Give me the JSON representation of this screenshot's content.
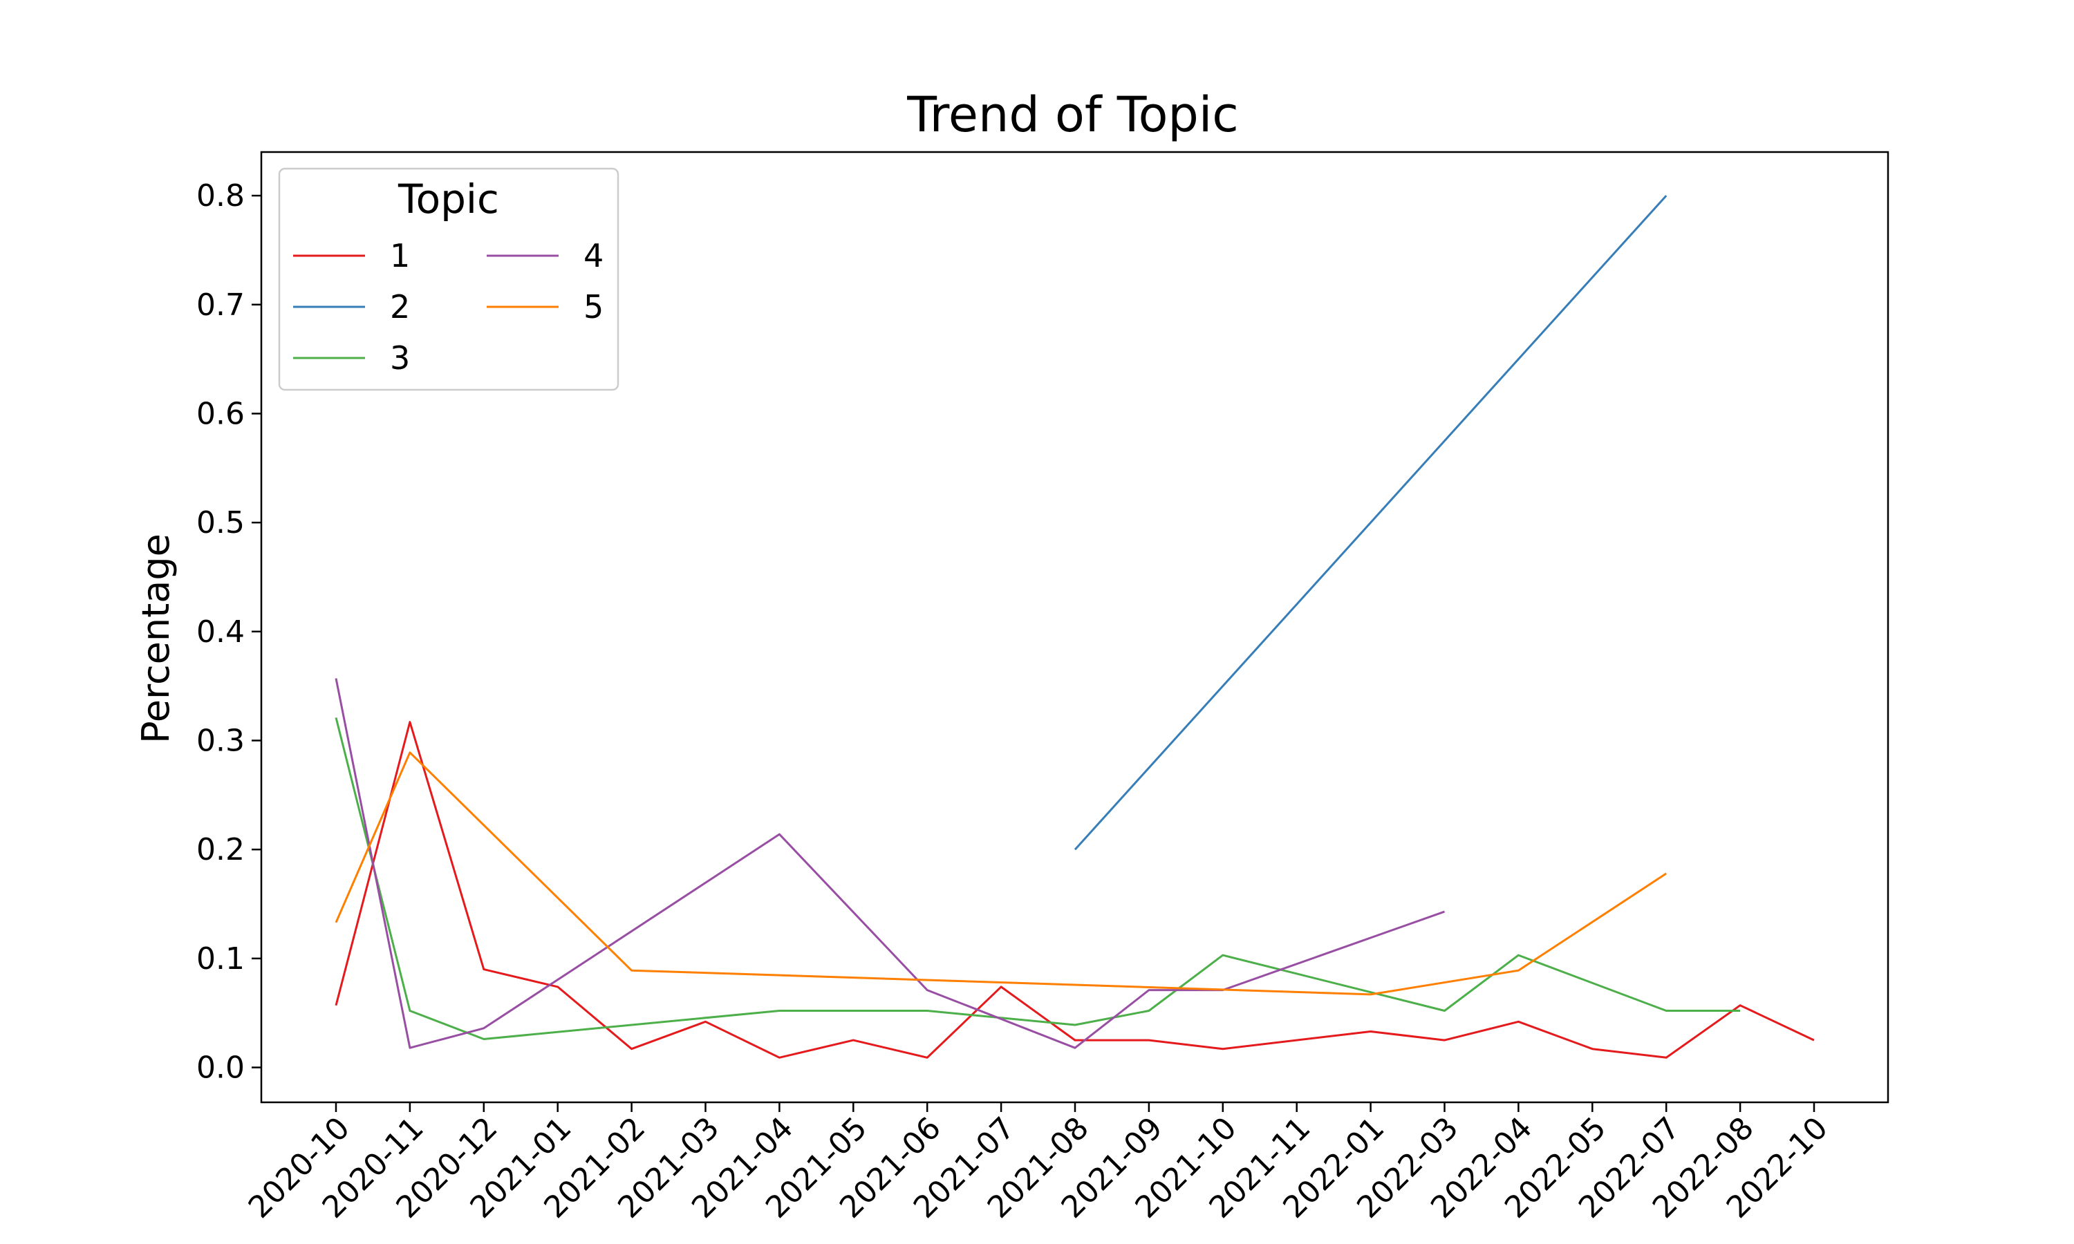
{
  "chart_data": {
    "type": "line",
    "title": "Trend of Topic",
    "xlabel": "",
    "ylabel": "Percentage",
    "categories": [
      "2020-10",
      "2020-11",
      "2020-12",
      "2021-01",
      "2021-02",
      "2021-03",
      "2021-04",
      "2021-05",
      "2021-06",
      "2021-07",
      "2021-08",
      "2021-09",
      "2021-10",
      "2021-11",
      "2022-01",
      "2022-03",
      "2022-04",
      "2022-05",
      "2022-07",
      "2022-08",
      "2022-10"
    ],
    "ylim": [
      -0.032,
      0.84
    ],
    "yticks": [
      0.0,
      0.1,
      0.2,
      0.3,
      0.4,
      0.5,
      0.6,
      0.7,
      0.8
    ],
    "ytick_labels": [
      "0.0",
      "0.1",
      "0.2",
      "0.3",
      "0.4",
      "0.5",
      "0.6",
      "0.7",
      "0.8"
    ],
    "grid": false,
    "legend": {
      "title": "Topic",
      "position": "top-left",
      "columns": 2
    },
    "series": [
      {
        "name": "1",
        "color": "#e41a1c",
        "points": [
          [
            "2020-10",
            0.057
          ],
          [
            "2020-11",
            0.317
          ],
          [
            "2020-12",
            0.09
          ],
          [
            "2021-01",
            0.074
          ],
          [
            "2021-02",
            0.017
          ],
          [
            "2021-03",
            0.042
          ],
          [
            "2021-04",
            0.009
          ],
          [
            "2021-05",
            0.025
          ],
          [
            "2021-06",
            0.009
          ],
          [
            "2021-07",
            0.074
          ],
          [
            "2021-08",
            0.025
          ],
          [
            "2021-09",
            0.025
          ],
          [
            "2021-10",
            0.017
          ],
          [
            "2022-01",
            0.033
          ],
          [
            "2022-03",
            0.025
          ],
          [
            "2022-04",
            0.042
          ],
          [
            "2022-05",
            0.017
          ],
          [
            "2022-07",
            0.009
          ],
          [
            "2022-08",
            0.057
          ],
          [
            "2022-10",
            0.025
          ]
        ]
      },
      {
        "name": "2",
        "color": "#377eb8",
        "points": [
          [
            "2021-08",
            0.2
          ],
          [
            "2022-07",
            0.8
          ]
        ]
      },
      {
        "name": "3",
        "color": "#4daf4a",
        "points": [
          [
            "2020-10",
            0.321
          ],
          [
            "2020-11",
            0.052
          ],
          [
            "2020-12",
            0.026
          ],
          [
            "2021-04",
            0.052
          ],
          [
            "2021-06",
            0.052
          ],
          [
            "2021-08",
            0.039
          ],
          [
            "2021-09",
            0.052
          ],
          [
            "2021-10",
            0.103
          ],
          [
            "2022-03",
            0.052
          ],
          [
            "2022-04",
            0.103
          ],
          [
            "2022-07",
            0.052
          ],
          [
            "2022-08",
            0.052
          ]
        ]
      },
      {
        "name": "4",
        "color": "#984ea3",
        "points": [
          [
            "2020-10",
            0.357
          ],
          [
            "2020-11",
            0.018
          ],
          [
            "2020-12",
            0.036
          ],
          [
            "2021-04",
            0.214
          ],
          [
            "2021-06",
            0.071
          ],
          [
            "2021-08",
            0.018
          ],
          [
            "2021-09",
            0.071
          ],
          [
            "2021-10",
            0.071
          ],
          [
            "2022-03",
            0.143
          ]
        ]
      },
      {
        "name": "5",
        "color": "#ff7f00",
        "points": [
          [
            "2020-10",
            0.133
          ],
          [
            "2020-11",
            0.289
          ],
          [
            "2021-02",
            0.089
          ],
          [
            "2022-01",
            0.067
          ],
          [
            "2022-04",
            0.089
          ],
          [
            "2022-07",
            0.178
          ]
        ]
      }
    ]
  }
}
